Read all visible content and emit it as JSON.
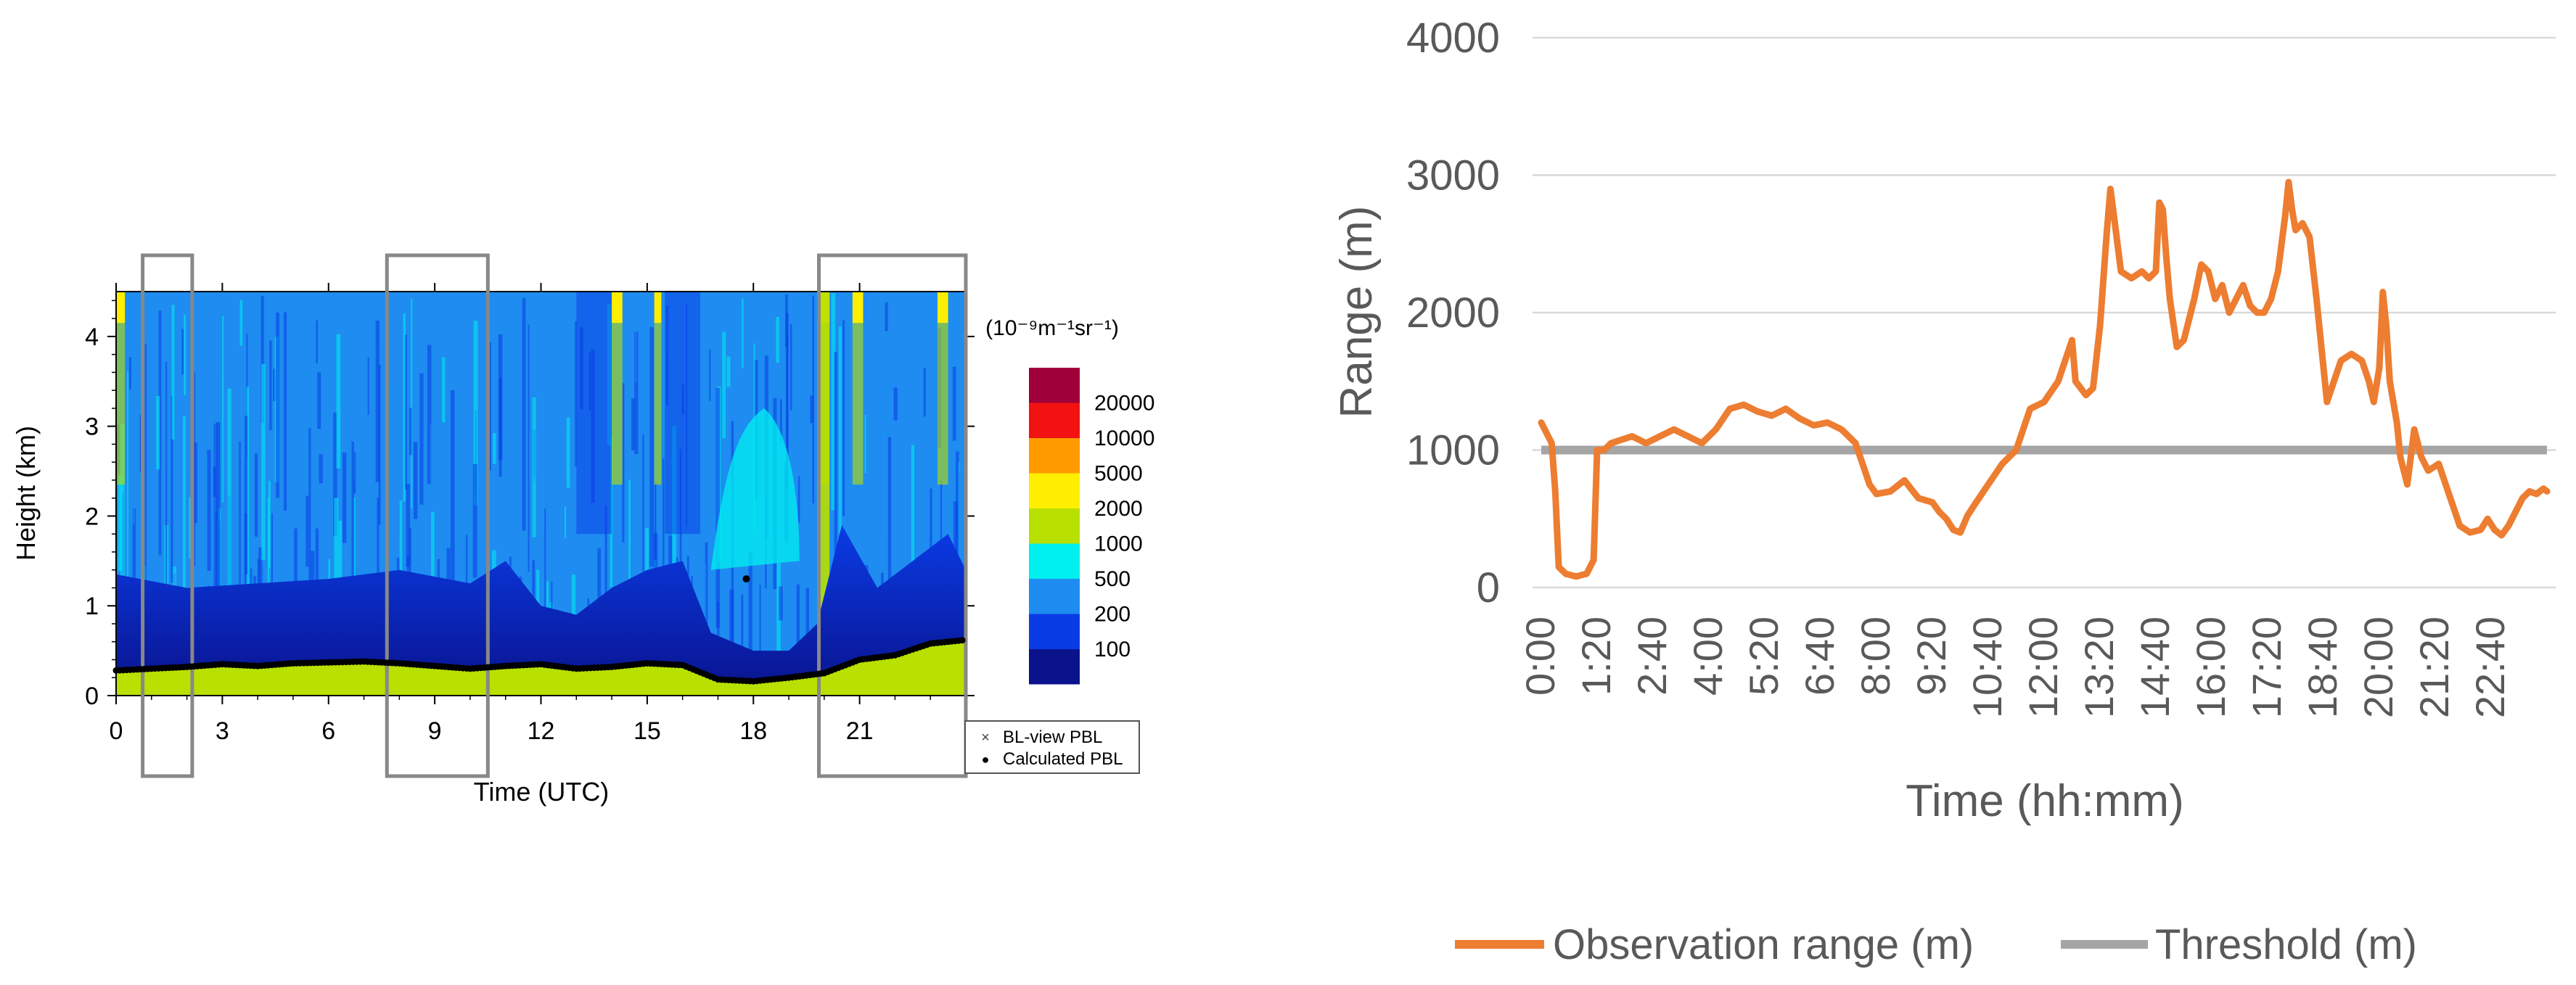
{
  "chart_data": [
    {
      "type": "heatmap",
      "xlabel": "Time (UTC)",
      "ylabel": "Height (km)",
      "x_ticks": [
        0,
        3,
        6,
        9,
        12,
        15,
        18,
        21
      ],
      "y_ticks": [
        0,
        1,
        2,
        3,
        4
      ],
      "xlim": [
        0,
        24
      ],
      "ylim": [
        0,
        4.5
      ],
      "colorbar": {
        "unit_label": "(10⁻⁹m⁻¹sr⁻¹)",
        "levels": [
          "20000",
          "10000",
          "5000",
          "2000",
          "1000",
          "500",
          "200",
          "100"
        ],
        "colors": [
          "#a0003a",
          "#f21212",
          "#ff9a00",
          "#ffee00",
          "#b8e000",
          "#00f0f0",
          "#1e8cf0",
          "#0a3ce6",
          "#0a128c"
        ]
      },
      "highlight_boxes_hours": [
        [
          0.75,
          2.15
        ],
        [
          7.65,
          10.5
        ],
        [
          19.85,
          24
        ]
      ],
      "legend": [
        {
          "marker": "×",
          "label": "BL-view PBL"
        },
        {
          "marker": "●",
          "label": "Calculated PBL"
        }
      ],
      "calculated_pbl_km": [
        [
          0,
          0.28
        ],
        [
          1,
          0.3
        ],
        [
          2,
          0.32
        ],
        [
          3,
          0.35
        ],
        [
          4,
          0.33
        ],
        [
          5,
          0.36
        ],
        [
          6,
          0.37
        ],
        [
          7,
          0.38
        ],
        [
          8,
          0.36
        ],
        [
          9,
          0.33
        ],
        [
          10,
          0.3
        ],
        [
          11,
          0.33
        ],
        [
          12,
          0.35
        ],
        [
          13,
          0.3
        ],
        [
          14,
          0.32
        ],
        [
          15,
          0.36
        ],
        [
          16,
          0.34
        ],
        [
          17,
          0.18
        ],
        [
          18,
          0.16
        ],
        [
          19,
          0.2
        ],
        [
          20,
          0.25
        ],
        [
          21,
          0.4
        ],
        [
          22,
          0.45
        ],
        [
          23,
          0.58
        ],
        [
          24,
          0.62
        ]
      ],
      "calculated_pbl_outlier": [
        17.8,
        1.3
      ]
    },
    {
      "type": "line",
      "xlabel": "Time (hh:mm)",
      "ylabel": "Range (m)",
      "ylim": [
        0,
        4000
      ],
      "y_ticks": [
        0,
        1000,
        2000,
        3000,
        4000
      ],
      "x_ticks": [
        "0:00",
        "1:20",
        "2:40",
        "4:00",
        "5:20",
        "6:40",
        "8:00",
        "9:20",
        "10:40",
        "12:00",
        "13:20",
        "14:40",
        "16:00",
        "17:20",
        "18:40",
        "20:00",
        "21:20",
        "22:40"
      ],
      "xlim_minutes": [
        0,
        1440
      ],
      "grid": true,
      "legend_position": "bottom",
      "series": [
        {
          "name": "Observation range (m)",
          "color": "#ed7d31",
          "points_minutes": [
            [
              0,
              1200
            ],
            [
              5,
              1150
            ],
            [
              10,
              1100
            ],
            [
              15,
              1050
            ],
            [
              20,
              700
            ],
            [
              25,
              150
            ],
            [
              35,
              100
            ],
            [
              50,
              80
            ],
            [
              65,
              100
            ],
            [
              75,
              200
            ],
            [
              80,
              1000
            ],
            [
              90,
              1000
            ],
            [
              100,
              1050
            ],
            [
              130,
              1100
            ],
            [
              150,
              1050
            ],
            [
              170,
              1100
            ],
            [
              190,
              1150
            ],
            [
              210,
              1100
            ],
            [
              230,
              1050
            ],
            [
              250,
              1150
            ],
            [
              270,
              1300
            ],
            [
              290,
              1330
            ],
            [
              310,
              1280
            ],
            [
              330,
              1250
            ],
            [
              350,
              1300
            ],
            [
              370,
              1230
            ],
            [
              390,
              1180
            ],
            [
              410,
              1200
            ],
            [
              430,
              1150
            ],
            [
              450,
              1050
            ],
            [
              460,
              900
            ],
            [
              470,
              750
            ],
            [
              480,
              680
            ],
            [
              500,
              700
            ],
            [
              520,
              780
            ],
            [
              540,
              650
            ],
            [
              560,
              620
            ],
            [
              570,
              550
            ],
            [
              580,
              500
            ],
            [
              590,
              420
            ],
            [
              600,
              400
            ],
            [
              610,
              520
            ],
            [
              620,
              600
            ],
            [
              640,
              750
            ],
            [
              660,
              900
            ],
            [
              680,
              1000
            ],
            [
              690,
              1150
            ],
            [
              700,
              1300
            ],
            [
              720,
              1350
            ],
            [
              740,
              1500
            ],
            [
              750,
              1650
            ],
            [
              760,
              1800
            ],
            [
              765,
              1500
            ],
            [
              780,
              1400
            ],
            [
              790,
              1450
            ],
            [
              800,
              1900
            ],
            [
              810,
              2600
            ],
            [
              815,
              2900
            ],
            [
              820,
              2700
            ],
            [
              830,
              2300
            ],
            [
              845,
              2250
            ],
            [
              860,
              2300
            ],
            [
              870,
              2250
            ],
            [
              880,
              2300
            ],
            [
              885,
              2800
            ],
            [
              890,
              2750
            ],
            [
              895,
              2400
            ],
            [
              900,
              2100
            ],
            [
              910,
              1750
            ],
            [
              920,
              1800
            ],
            [
              935,
              2100
            ],
            [
              945,
              2350
            ],
            [
              955,
              2300
            ],
            [
              965,
              2100
            ],
            [
              975,
              2200
            ],
            [
              985,
              2000
            ],
            [
              995,
              2100
            ],
            [
              1005,
              2200
            ],
            [
              1015,
              2050
            ],
            [
              1025,
              2000
            ],
            [
              1035,
              2000
            ],
            [
              1045,
              2100
            ],
            [
              1055,
              2300
            ],
            [
              1065,
              2700
            ],
            [
              1070,
              2950
            ],
            [
              1075,
              2750
            ],
            [
              1080,
              2600
            ],
            [
              1090,
              2650
            ],
            [
              1100,
              2550
            ],
            [
              1110,
              2100
            ],
            [
              1120,
              1600
            ],
            [
              1125,
              1350
            ],
            [
              1135,
              1500
            ],
            [
              1145,
              1650
            ],
            [
              1160,
              1700
            ],
            [
              1175,
              1650
            ],
            [
              1185,
              1500
            ],
            [
              1192,
              1350
            ],
            [
              1200,
              1600
            ],
            [
              1205,
              2150
            ],
            [
              1210,
              1900
            ],
            [
              1215,
              1500
            ],
            [
              1225,
              1200
            ],
            [
              1230,
              950
            ],
            [
              1240,
              750
            ],
            [
              1250,
              1150
            ],
            [
              1260,
              950
            ],
            [
              1270,
              850
            ],
            [
              1285,
              900
            ],
            [
              1295,
              750
            ],
            [
              1305,
              600
            ],
            [
              1315,
              450
            ],
            [
              1330,
              400
            ],
            [
              1345,
              420
            ],
            [
              1355,
              500
            ],
            [
              1365,
              420
            ],
            [
              1375,
              380
            ],
            [
              1385,
              450
            ],
            [
              1395,
              550
            ],
            [
              1405,
              650
            ],
            [
              1415,
              700
            ],
            [
              1425,
              680
            ],
            [
              1435,
              720
            ],
            [
              1440,
              700
            ]
          ]
        },
        {
          "name": "Threshold (m)",
          "color": "#a5a5a5",
          "points_minutes": [
            [
              0,
              1000
            ],
            [
              1440,
              1000
            ]
          ]
        }
      ]
    }
  ]
}
